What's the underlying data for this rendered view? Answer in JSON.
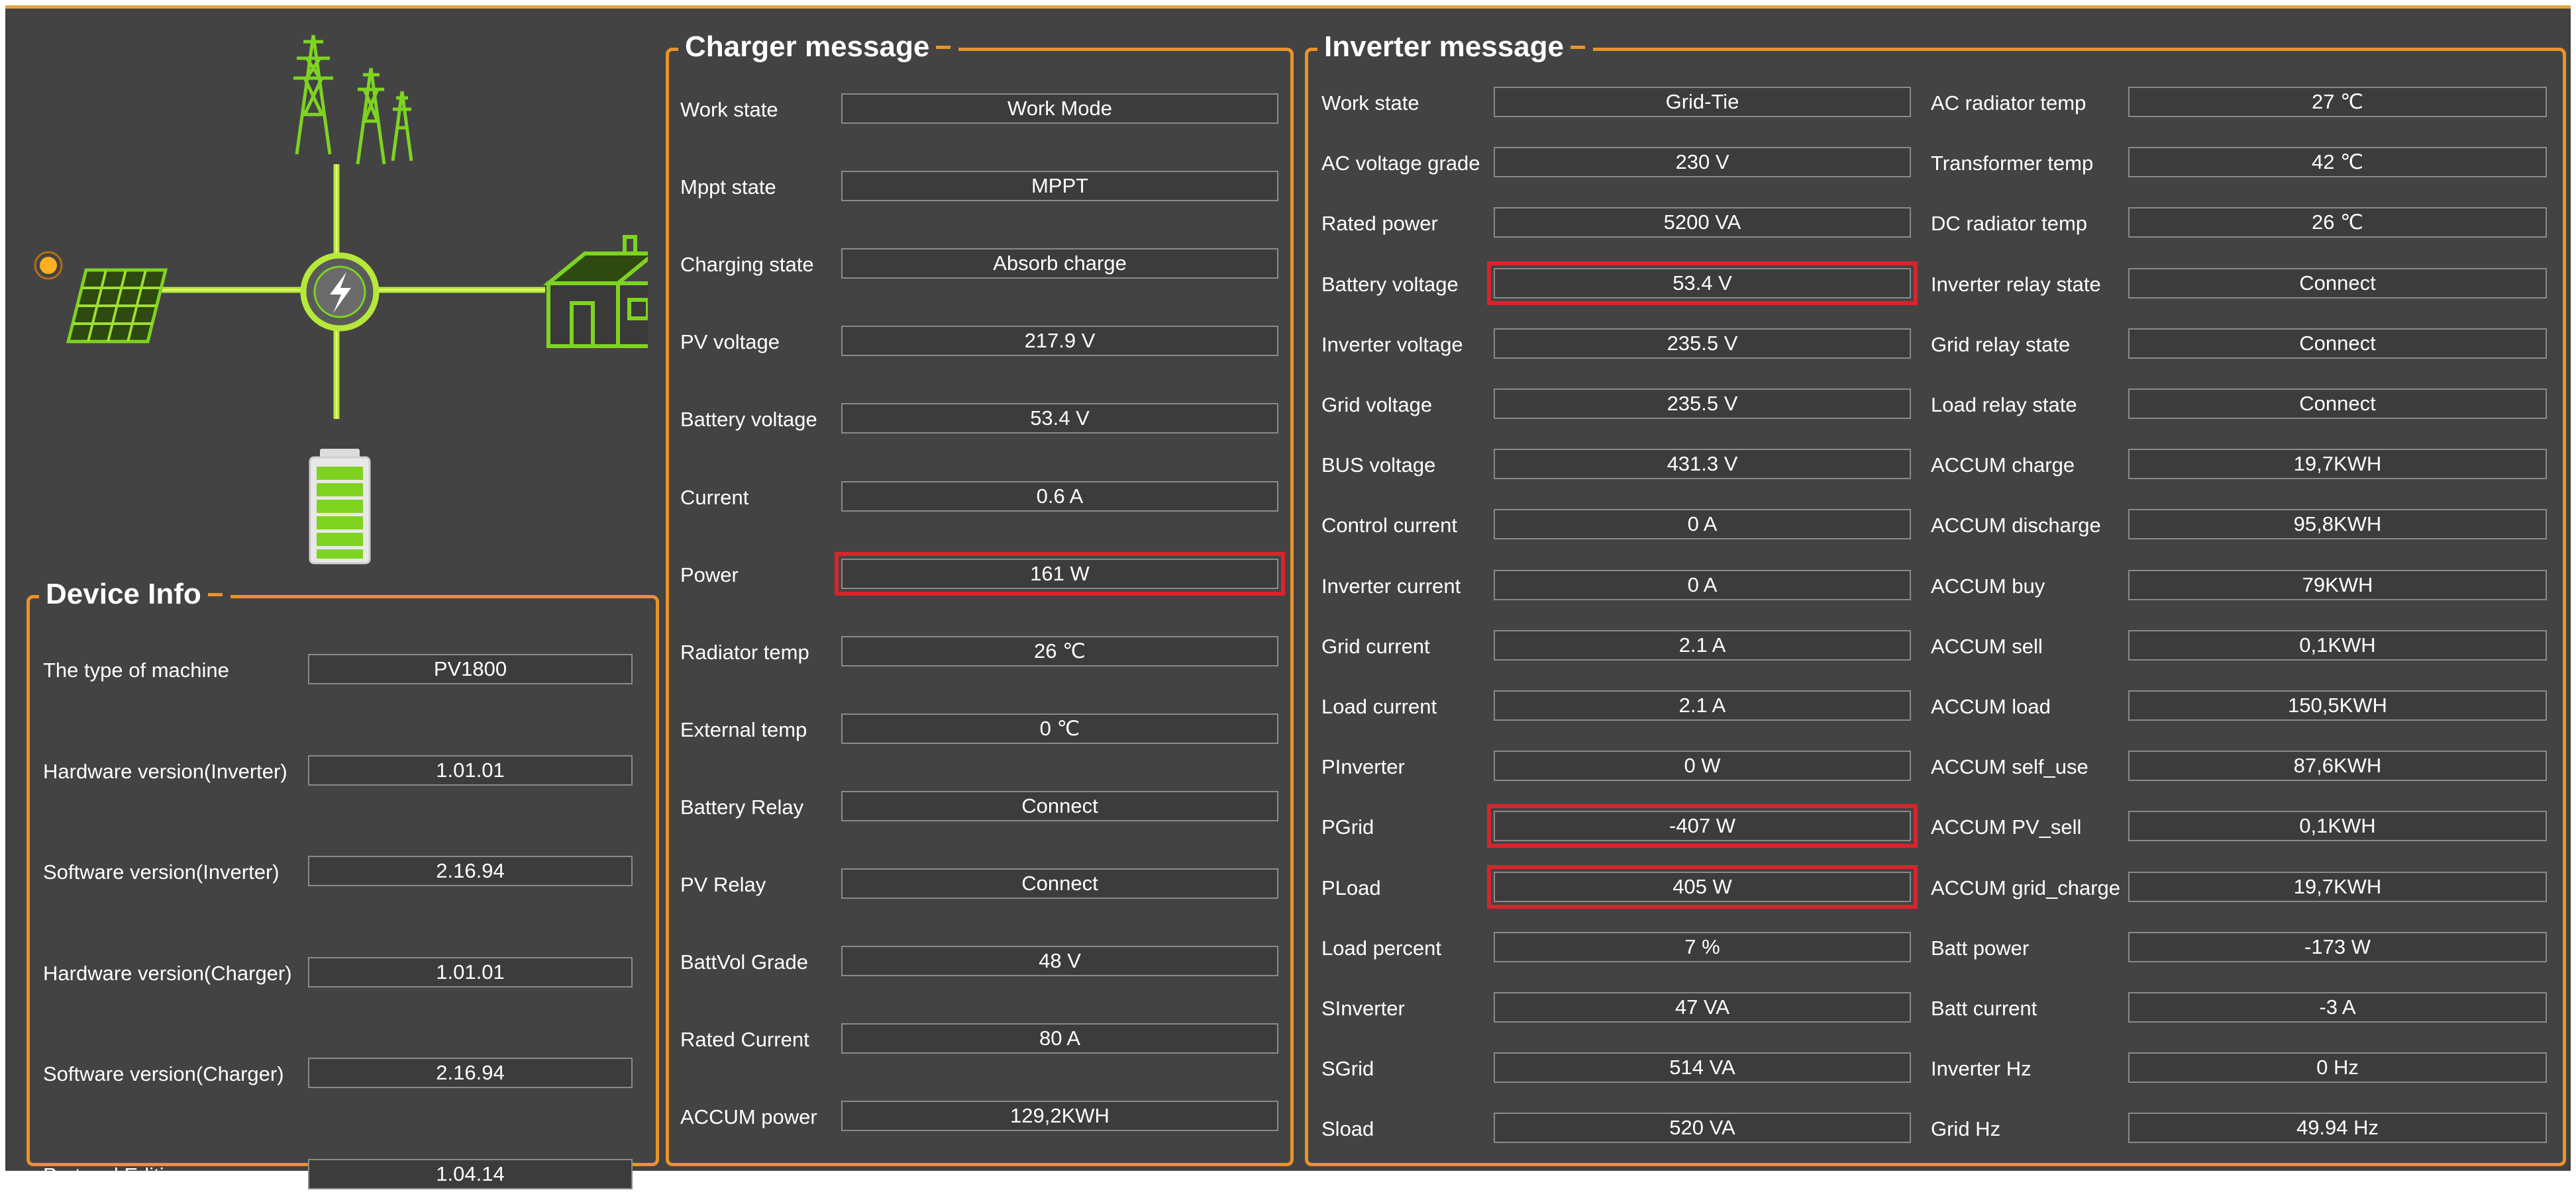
{
  "icons": {
    "grid": "power-tower-icon",
    "solar": "solar-panel-icon",
    "sun": "sun-icon",
    "hub": "inverter-bolt-icon",
    "home": "house-icon",
    "battery": "battery-icon"
  },
  "colors": {
    "accent": "#e8942a",
    "panel_bg": "#434343",
    "highlight": "#d8242b",
    "flow_line": "#b6e83a"
  },
  "device_info": {
    "title": "Device Info",
    "rows": [
      {
        "label": "The type of machine",
        "value": "PV1800"
      },
      {
        "label": "Hardware version(Inverter)",
        "value": "1.01.01"
      },
      {
        "label": "Software version(Inverter)",
        "value": "2.16.94"
      },
      {
        "label": "Hardware version(Charger)",
        "value": "1.01.01"
      },
      {
        "label": "Software version(Charger)",
        "value": "2.16.94"
      },
      {
        "label": "Protocal Edition",
        "value": "1.04.14"
      }
    ]
  },
  "charger": {
    "title": "Charger message",
    "rows": [
      {
        "label": "Work state",
        "value": "Work Mode"
      },
      {
        "label": "Mppt state",
        "value": "MPPT"
      },
      {
        "label": "Charging state",
        "value": "Absorb charge"
      },
      {
        "label": "PV voltage",
        "value": "217.9 V"
      },
      {
        "label": "Battery voltage",
        "value": "53.4 V"
      },
      {
        "label": "Current",
        "value": "0.6 A"
      },
      {
        "label": "Power",
        "value": "161 W"
      },
      {
        "label": "Radiator temp",
        "value": "26 ℃"
      },
      {
        "label": "External temp",
        "value": "0 ℃"
      },
      {
        "label": "Battery Relay",
        "value": "Connect"
      },
      {
        "label": "PV Relay",
        "value": "Connect"
      },
      {
        "label": "BattVol Grade",
        "value": "48 V"
      },
      {
        "label": "Rated Current",
        "value": "80 A"
      },
      {
        "label": "ACCUM power",
        "value": "129,2KWH"
      }
    ]
  },
  "inverter": {
    "title": "Inverter message",
    "left": [
      {
        "label": "Work state",
        "value": "Grid-Tie"
      },
      {
        "label": "AC voltage grade",
        "value": "230 V"
      },
      {
        "label": "Rated power",
        "value": "5200 VA"
      },
      {
        "label": "Battery voltage",
        "value": "53.4 V"
      },
      {
        "label": "Inverter voltage",
        "value": "235.5 V"
      },
      {
        "label": "Grid voltage",
        "value": "235.5 V"
      },
      {
        "label": "BUS voltage",
        "value": "431.3 V"
      },
      {
        "label": "Control current",
        "value": "0 A"
      },
      {
        "label": "Inverter current",
        "value": "0 A"
      },
      {
        "label": "Grid current",
        "value": "2.1 A"
      },
      {
        "label": "Load current",
        "value": "2.1 A"
      },
      {
        "label": "PInverter",
        "value": "0 W"
      },
      {
        "label": "PGrid",
        "value": "-407 W"
      },
      {
        "label": "PLoad",
        "value": "405 W"
      },
      {
        "label": "Load percent",
        "value": "7 %"
      },
      {
        "label": "SInverter",
        "value": "47 VA"
      },
      {
        "label": "SGrid",
        "value": "514 VA"
      },
      {
        "label": "Sload",
        "value": "520 VA"
      }
    ],
    "right": [
      {
        "label": "AC radiator temp",
        "value": "27 ℃"
      },
      {
        "label": "Transformer temp",
        "value": "42 ℃"
      },
      {
        "label": "DC radiator temp",
        "value": "26 ℃"
      },
      {
        "label": "Inverter relay state",
        "value": "Connect"
      },
      {
        "label": "Grid relay state",
        "value": "Connect"
      },
      {
        "label": "Load relay state",
        "value": "Connect"
      },
      {
        "label": "ACCUM charge",
        "value": "19,7KWH"
      },
      {
        "label": "ACCUM discharge",
        "value": "95,8KWH"
      },
      {
        "label": "ACCUM buy",
        "value": "79KWH"
      },
      {
        "label": "ACCUM sell",
        "value": "0,1KWH"
      },
      {
        "label": "ACCUM load",
        "value": "150,5KWH"
      },
      {
        "label": "ACCUM self_use",
        "value": "87,6KWH"
      },
      {
        "label": "ACCUM PV_sell",
        "value": "0,1KWH"
      },
      {
        "label": "ACCUM grid_charge",
        "value": "19,7KWH"
      },
      {
        "label": "Batt power",
        "value": "-173 W"
      },
      {
        "label": "Batt current",
        "value": "-3 A"
      },
      {
        "label": "Inverter Hz",
        "value": "0 Hz"
      },
      {
        "label": "Grid Hz",
        "value": "49.94 Hz"
      }
    ]
  }
}
